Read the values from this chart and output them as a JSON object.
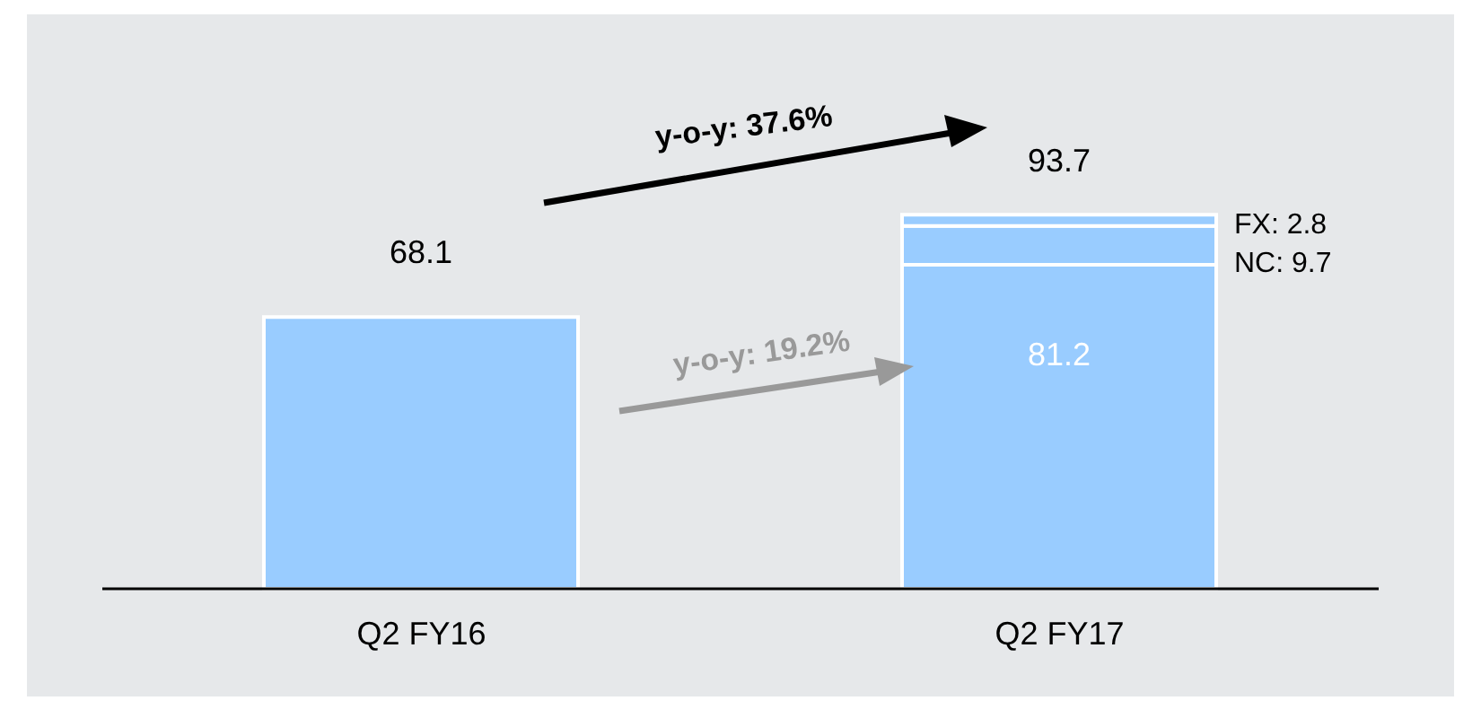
{
  "chart_data": {
    "type": "bar",
    "stacked": true,
    "categories": [
      "Q2 FY16",
      "Q2 FY17"
    ],
    "series": [
      {
        "color": "#99ccff",
        "values": [
          68.1,
          81.2
        ],
        "value_labels": [
          null,
          "81.2"
        ]
      },
      {
        "name": "NC:",
        "color": "#99ccff",
        "values": [
          null,
          9.7
        ],
        "value_labels": [
          null,
          "9.7"
        ]
      },
      {
        "name": "FX:",
        "color": "#99ccff",
        "values": [
          null,
          2.8
        ],
        "value_labels": [
          null,
          "2.8"
        ]
      }
    ],
    "totals": [
      "68.1",
      "93.7"
    ],
    "annotations": [
      "y-o-y: 37.6%",
      "y-o-y: 19.2%"
    ],
    "grid": false,
    "legend": false
  }
}
